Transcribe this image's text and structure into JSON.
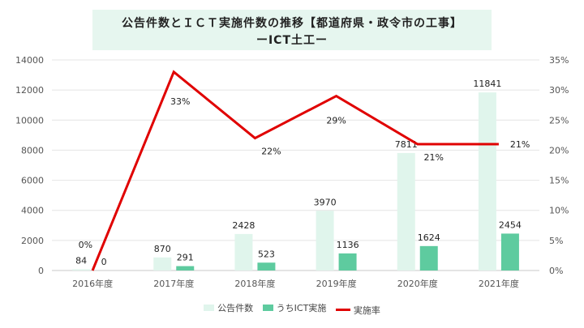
{
  "title": {
    "line1": "公告件数とＩＣＴ実施件数の推移【都道府県・政令市の工事】",
    "line2": "ーICT土工ー"
  },
  "chart_data": {
    "type": "bar",
    "categories": [
      "2016年度",
      "2017年度",
      "2018年度",
      "2019年度",
      "2020年度",
      "2021年度"
    ],
    "series": [
      {
        "name": "公告件数",
        "type": "bar",
        "axis": "left",
        "color": "#e0f5ec",
        "values": [
          84,
          870,
          2428,
          3970,
          7811,
          11841
        ]
      },
      {
        "name": "うちICT実施",
        "type": "bar",
        "axis": "left",
        "color": "#5ecb9f",
        "values": [
          0,
          291,
          523,
          1136,
          1624,
          2454
        ]
      },
      {
        "name": "実施率",
        "type": "line",
        "axis": "right",
        "color": "#e00000",
        "values": [
          0,
          33,
          22,
          29,
          21,
          21
        ],
        "labels": [
          "0%",
          "33%",
          "22%",
          "29%",
          "21%",
          "21%"
        ]
      }
    ],
    "ylim": [
      0,
      14000
    ],
    "yticks": [
      "0",
      "2000",
      "4000",
      "6000",
      "8000",
      "10000",
      "12000",
      "14000"
    ],
    "y2lim": [
      0,
      35
    ],
    "y2ticks": [
      "0%",
      "5%",
      "10%",
      "15%",
      "20%",
      "25%",
      "30%",
      "35%"
    ],
    "grid": true,
    "legend_position": "bottom"
  }
}
